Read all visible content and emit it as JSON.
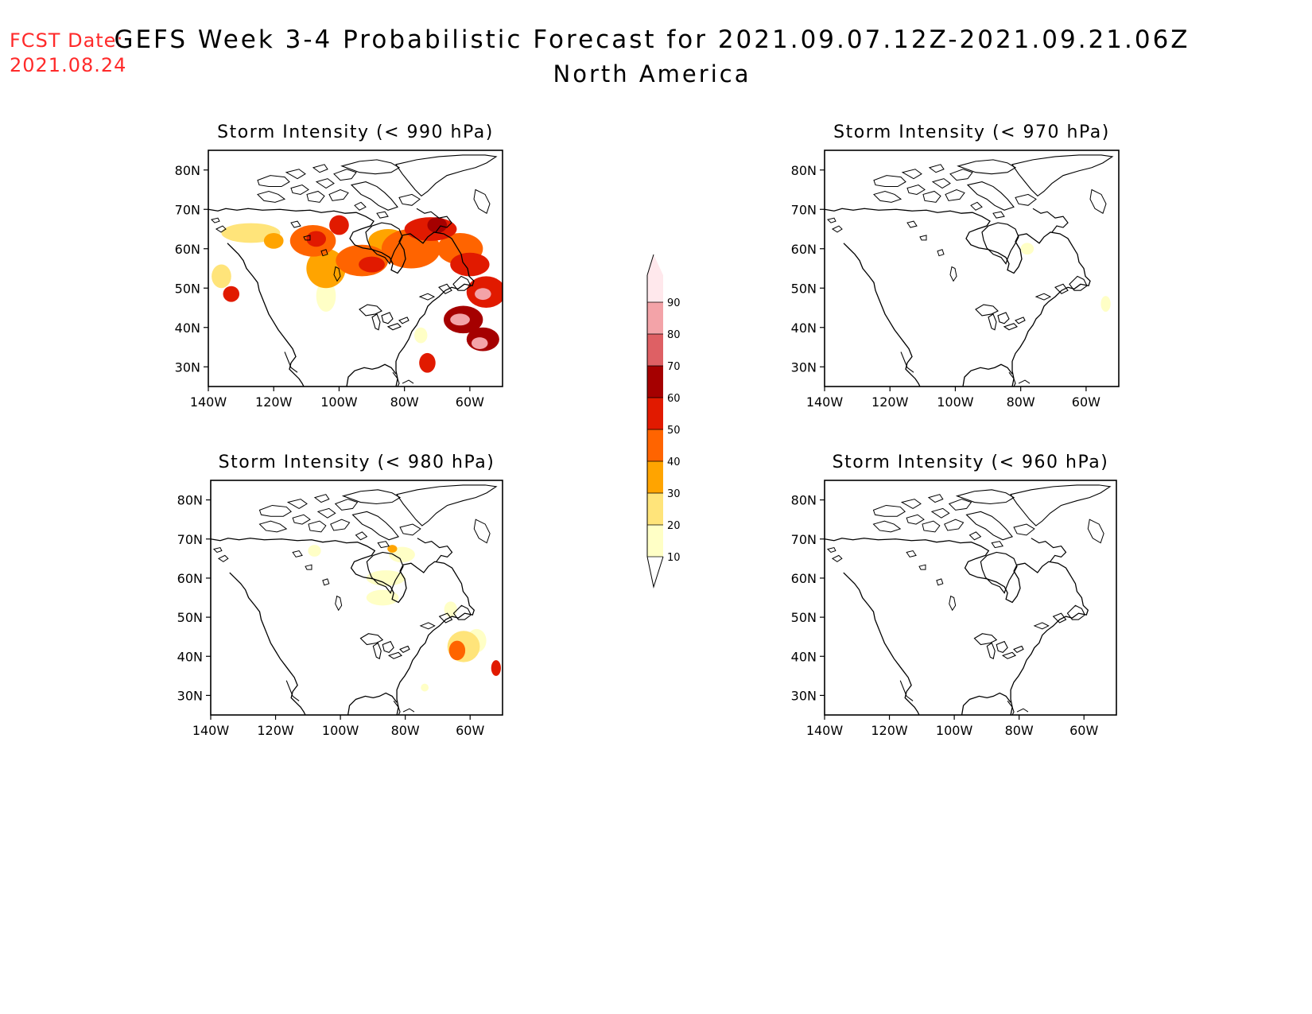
{
  "header": {
    "fcst_label": "FCST Date:",
    "fcst_date": "2021.08.24",
    "title": "GEFS Week 3-4 Probabilistic Forecast for 2021.09.07.12Z-2021.09.21.06Z",
    "subtitle": "North America"
  },
  "lat_labels": [
    "30N",
    "40N",
    "50N",
    "60N",
    "70N",
    "80N"
  ],
  "lon_labels": [
    "140W",
    "120W",
    "100W",
    "80W",
    "60W"
  ],
  "panels": [
    {
      "id": "p990",
      "title": "Storm Intensity (< 990 hPa)",
      "blobs": [
        {
          "lon": -133,
          "lat": 48.5,
          "rx": 2.5,
          "ry": 2,
          "v": 55
        },
        {
          "lon": -136,
          "lat": 53,
          "rx": 3,
          "ry": 3,
          "v": 20
        },
        {
          "lon": -127,
          "lat": 64,
          "rx": 9,
          "ry": 2.5,
          "v": 20
        },
        {
          "lon": -120,
          "lat": 62,
          "rx": 3,
          "ry": 2,
          "v": 35
        },
        {
          "lon": -108,
          "lat": 62,
          "rx": 7,
          "ry": 4,
          "v": 40
        },
        {
          "lon": -107,
          "lat": 62.5,
          "rx": 3,
          "ry": 2,
          "v": 55
        },
        {
          "lon": -100,
          "lat": 66,
          "rx": 3,
          "ry": 2.5,
          "v": 55
        },
        {
          "lon": -104,
          "lat": 55,
          "rx": 6,
          "ry": 5,
          "v": 30
        },
        {
          "lon": -104,
          "lat": 48,
          "rx": 3,
          "ry": 4,
          "v": 15
        },
        {
          "lon": -93,
          "lat": 57,
          "rx": 8,
          "ry": 4,
          "v": 40
        },
        {
          "lon": -90,
          "lat": 56,
          "rx": 4,
          "ry": 2,
          "v": 55
        },
        {
          "lon": -85,
          "lat": 62,
          "rx": 6,
          "ry": 3,
          "v": 30
        },
        {
          "lon": -78,
          "lat": 60,
          "rx": 9,
          "ry": 5,
          "v": 40
        },
        {
          "lon": -72,
          "lat": 65,
          "rx": 8,
          "ry": 3,
          "v": 55
        },
        {
          "lon": -70,
          "lat": 66,
          "rx": 3,
          "ry": 2,
          "v": 65
        },
        {
          "lon": -63,
          "lat": 60,
          "rx": 7,
          "ry": 4,
          "v": 40
        },
        {
          "lon": -60,
          "lat": 56,
          "rx": 6,
          "ry": 3,
          "v": 50
        },
        {
          "lon": -55,
          "lat": 49,
          "rx": 6,
          "ry": 4,
          "v": 55
        },
        {
          "lon": -56,
          "lat": 48.5,
          "rx": 2.5,
          "ry": 1.5,
          "v": 85
        },
        {
          "lon": -62,
          "lat": 42,
          "rx": 6,
          "ry": 3.5,
          "v": 60
        },
        {
          "lon": -63,
          "lat": 42,
          "rx": 3,
          "ry": 1.5,
          "v": 85
        },
        {
          "lon": -56,
          "lat": 37,
          "rx": 5,
          "ry": 3,
          "v": 60
        },
        {
          "lon": -57,
          "lat": 36,
          "rx": 2.5,
          "ry": 1.5,
          "v": 85
        },
        {
          "lon": -73,
          "lat": 31,
          "rx": 2.5,
          "ry": 2.5,
          "v": 55
        },
        {
          "lon": -75,
          "lat": 38,
          "rx": 2,
          "ry": 2,
          "v": 15
        }
      ]
    },
    {
      "id": "p970",
      "title": "Storm Intensity (< 970 hPa)",
      "blobs": [
        {
          "lon": -78,
          "lat": 60,
          "rx": 2,
          "ry": 1.5,
          "v": 15
        },
        {
          "lon": -54,
          "lat": 46,
          "rx": 1.5,
          "ry": 2,
          "v": 15
        }
      ]
    },
    {
      "id": "p980",
      "title": "Storm Intensity (< 980 hPa)",
      "blobs": [
        {
          "lon": -81,
          "lat": 66,
          "rx": 4,
          "ry": 2,
          "v": 15
        },
        {
          "lon": -84,
          "lat": 67.5,
          "rx": 1.5,
          "ry": 1,
          "v": 35
        },
        {
          "lon": -86,
          "lat": 60,
          "rx": 6,
          "ry": 2,
          "v": 12
        },
        {
          "lon": -108,
          "lat": 67,
          "rx": 2,
          "ry": 1.5,
          "v": 12
        },
        {
          "lon": -87,
          "lat": 55,
          "rx": 5,
          "ry": 2,
          "v": 12
        },
        {
          "lon": -66,
          "lat": 52,
          "rx": 2,
          "ry": 2,
          "v": 15
        },
        {
          "lon": -62,
          "lat": 42.5,
          "rx": 5,
          "ry": 4,
          "v": 25
        },
        {
          "lon": -64,
          "lat": 41.5,
          "rx": 2.5,
          "ry": 2.5,
          "v": 40
        },
        {
          "lon": -58,
          "lat": 44,
          "rx": 3,
          "ry": 3,
          "v": 15
        },
        {
          "lon": -52,
          "lat": 37,
          "rx": 1.5,
          "ry": 2,
          "v": 55
        },
        {
          "lon": -74,
          "lat": 32,
          "rx": 1.2,
          "ry": 1,
          "v": 12
        }
      ]
    },
    {
      "id": "p960",
      "title": "Storm Intensity (< 960 hPa)",
      "blobs": []
    }
  ],
  "colorbar": {
    "levels": [
      "10",
      "20",
      "30",
      "40",
      "50",
      "60",
      "70",
      "80",
      "90"
    ],
    "colors": [
      "#ffffc6",
      "#ffe47a",
      "#ffa400",
      "#ff6400",
      "#e11a00",
      "#a50000",
      "#de6064",
      "#f3a3a8",
      "#ffe8ec"
    ]
  }
}
